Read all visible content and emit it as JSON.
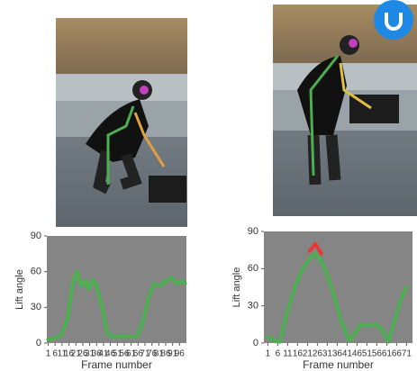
{
  "chart_data": [
    {
      "type": "line",
      "ylabel": "Lift angle",
      "xlabel": "Frame number",
      "x": [
        1,
        5,
        10,
        15,
        18,
        20,
        22,
        25,
        28,
        30,
        33,
        36,
        40,
        44,
        48,
        55,
        62,
        66,
        70,
        74,
        78,
        82,
        86,
        90,
        94,
        98,
        100
      ],
      "series": [
        {
          "color": "#4caf50",
          "values": [
            3,
            4,
            6,
            20,
            45,
            55,
            60,
            48,
            52,
            45,
            53,
            48,
            30,
            8,
            5,
            6,
            5,
            7,
            20,
            40,
            50,
            48,
            52,
            55,
            50,
            52,
            50
          ]
        }
      ],
      "xlim": [
        0,
        101
      ],
      "ylim": [
        0,
        90
      ],
      "yticks": [
        0,
        30,
        60,
        90
      ],
      "xticks": [
        1,
        6,
        11,
        16,
        21,
        26,
        31,
        36,
        41,
        46,
        51,
        56,
        61,
        66,
        71,
        76,
        81,
        86,
        91,
        96
      ]
    },
    {
      "type": "line",
      "ylabel": "Lift angle",
      "xlabel": "Frame number",
      "x": [
        1,
        4,
        7,
        10,
        14,
        18,
        22,
        25,
        28,
        31,
        34,
        38,
        42,
        45,
        48,
        52,
        56,
        59,
        62,
        65,
        68,
        71
      ],
      "series": [
        {
          "color": "#4caf50",
          "values": [
            5,
            2,
            1,
            20,
            42,
            58,
            68,
            72,
            66,
            55,
            40,
            18,
            2,
            8,
            15,
            14,
            15,
            10,
            1,
            18,
            35,
            45
          ]
        },
        {
          "color": "#e53935",
          "values": [
            null,
            null,
            null,
            null,
            null,
            null,
            74,
            80,
            72,
            null,
            null,
            null,
            null,
            null,
            null,
            null,
            null,
            null,
            null,
            null,
            null,
            null
          ]
        }
      ],
      "xlim": [
        -1,
        74
      ],
      "ylim": [
        0,
        90
      ],
      "yticks": [
        0,
        30,
        60,
        90
      ],
      "xticks": [
        1,
        6,
        11,
        16,
        21,
        26,
        31,
        36,
        41,
        46,
        51,
        56,
        61,
        66,
        71
      ]
    }
  ]
}
